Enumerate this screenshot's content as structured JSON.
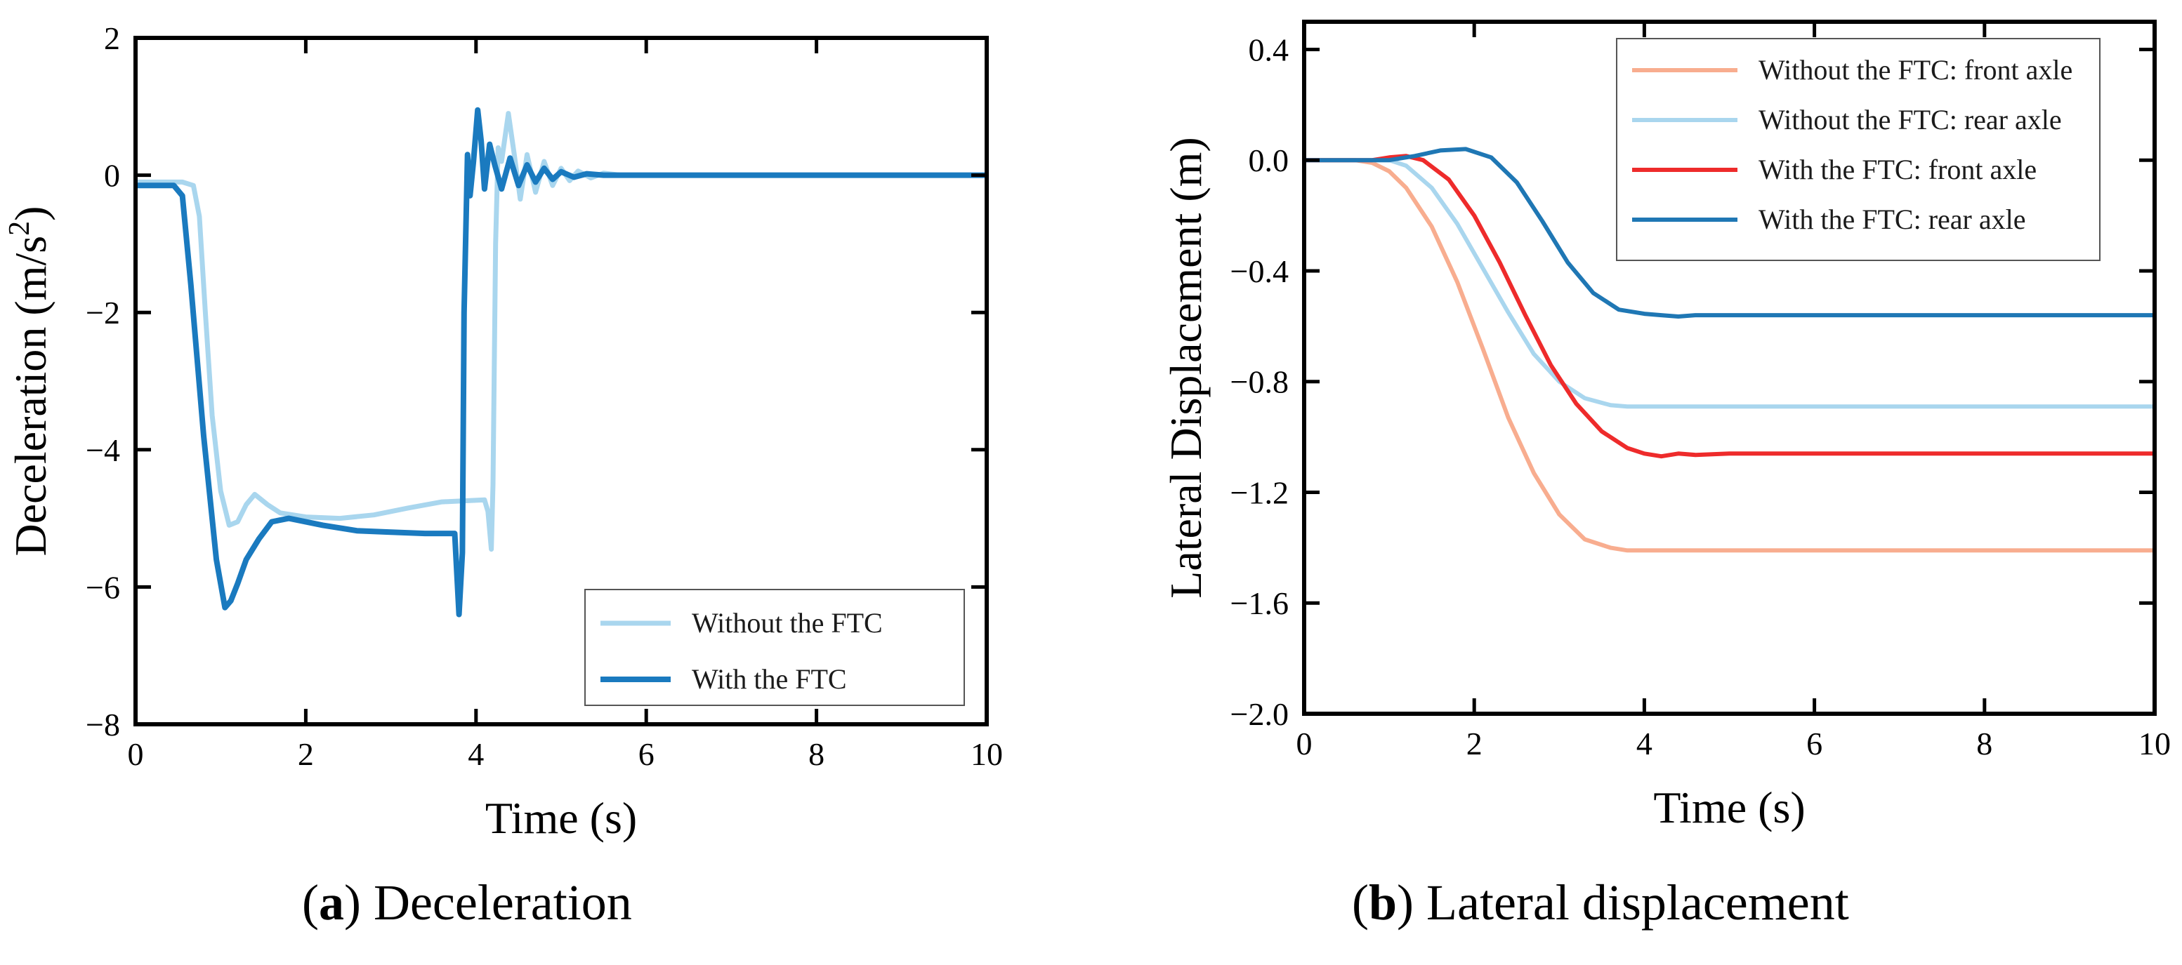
{
  "chart_data": [
    {
      "type": "line",
      "title": "",
      "xlabel": "Time (s)",
      "ylabel_main": "Deceleration (m/s",
      "ylabel_sup": "2",
      "ylabel_tail": ")",
      "xlim": [
        0,
        10
      ],
      "ylim": [
        -8,
        2
      ],
      "xticks": [
        0,
        2,
        4,
        6,
        8,
        10
      ],
      "yticks": [
        -8,
        -6,
        -4,
        -2,
        0,
        2
      ],
      "ytick_labels": [
        "−8",
        "−6",
        "−4",
        "−2",
        "0",
        "2"
      ],
      "grid": false,
      "legend_position": "bottom-right",
      "caption_letter": "a",
      "caption_text": "Deceleration",
      "series": [
        {
          "name": "Without the FTC",
          "color": "#a9d6ee",
          "x": [
            0,
            0.55,
            0.68,
            0.75,
            0.82,
            0.9,
            1.0,
            1.1,
            1.2,
            1.3,
            1.4,
            1.55,
            1.7,
            2.0,
            2.4,
            2.8,
            3.2,
            3.6,
            4.1,
            4.14,
            4.18,
            4.2,
            4.23,
            4.26,
            4.3,
            4.38,
            4.45,
            4.52,
            4.6,
            4.7,
            4.8,
            4.9,
            5.0,
            5.1,
            5.2,
            5.35,
            5.5,
            5.7,
            6.0,
            6.5,
            7.0,
            8.0,
            9.0,
            10.0
          ],
          "y": [
            -0.1,
            -0.1,
            -0.15,
            -0.6,
            -2.0,
            -3.5,
            -4.6,
            -5.1,
            -5.05,
            -4.8,
            -4.65,
            -4.8,
            -4.92,
            -4.98,
            -5.0,
            -4.95,
            -4.85,
            -4.76,
            -4.73,
            -4.9,
            -5.45,
            -4.5,
            -1.0,
            0.4,
            0.2,
            0.9,
            0.3,
            -0.35,
            0.3,
            -0.25,
            0.2,
            -0.15,
            0.1,
            -0.08,
            0.06,
            -0.04,
            0.03,
            0.0,
            0.0,
            0.0,
            0.0,
            0.0,
            0.0,
            0.0
          ]
        },
        {
          "name": "With the FTC",
          "color": "#1a7abf",
          "x": [
            0,
            0.45,
            0.55,
            0.65,
            0.8,
            0.95,
            1.05,
            1.12,
            1.2,
            1.3,
            1.45,
            1.6,
            1.8,
            2.2,
            2.6,
            3.0,
            3.4,
            3.75,
            3.8,
            3.84,
            3.86,
            3.9,
            3.93,
            3.97,
            4.02,
            4.06,
            4.1,
            4.16,
            4.22,
            4.3,
            4.4,
            4.5,
            4.6,
            4.7,
            4.8,
            4.9,
            5.0,
            5.15,
            5.3,
            5.5,
            5.8,
            6.2,
            7.0,
            8.0,
            9.0,
            10.0
          ],
          "y": [
            -0.15,
            -0.15,
            -0.3,
            -1.6,
            -3.8,
            -5.6,
            -6.3,
            -6.2,
            -5.95,
            -5.6,
            -5.3,
            -5.05,
            -5.0,
            -5.1,
            -5.18,
            -5.2,
            -5.22,
            -5.22,
            -6.4,
            -5.5,
            -2.0,
            0.3,
            -0.3,
            0.2,
            0.95,
            0.5,
            -0.2,
            0.45,
            0.15,
            -0.2,
            0.25,
            -0.15,
            0.15,
            -0.1,
            0.1,
            -0.06,
            0.05,
            -0.03,
            0.02,
            0.0,
            0.0,
            0.0,
            0.0,
            0.0,
            0.0,
            0.0
          ]
        }
      ]
    },
    {
      "type": "line",
      "title": "",
      "xlabel": "Time (s)",
      "ylabel": "Lateral Displacement (m)",
      "xlim": [
        0,
        10
      ],
      "ylim": [
        -2.0,
        0.5
      ],
      "xticks": [
        0,
        2,
        4,
        6,
        8,
        10
      ],
      "yticks": [
        -2.0,
        -1.6,
        -1.2,
        -0.8,
        -0.4,
        0.0,
        0.4
      ],
      "ytick_labels": [
        "−2.0",
        "−1.6",
        "−1.2",
        "−0.8",
        "−0.4",
        "0.0",
        "0.4"
      ],
      "grid": false,
      "legend_position": "top-right",
      "caption_letter": "b",
      "caption_text": "Lateral displacement",
      "series": [
        {
          "name": "Without the FTC: front axle",
          "color": "#f8ad8f",
          "x": [
            0,
            0.6,
            0.8,
            1.0,
            1.2,
            1.5,
            1.8,
            2.1,
            2.4,
            2.7,
            3.0,
            3.3,
            3.6,
            3.8,
            4.0,
            4.5,
            5.0,
            6.0,
            7.0,
            8.0,
            9.0,
            10.0
          ],
          "y": [
            0,
            0,
            -0.01,
            -0.04,
            -0.1,
            -0.24,
            -0.44,
            -0.68,
            -0.93,
            -1.13,
            -1.28,
            -1.37,
            -1.4,
            -1.41,
            -1.41,
            -1.41,
            -1.41,
            -1.41,
            -1.41,
            -1.41,
            -1.41,
            -1.41
          ]
        },
        {
          "name": "Without the FTC: rear axle",
          "color": "#a9d6ee",
          "x": [
            0,
            0.8,
            1.0,
            1.2,
            1.5,
            1.8,
            2.1,
            2.4,
            2.7,
            3.0,
            3.3,
            3.6,
            3.8,
            4.0,
            4.5,
            5.0,
            6.0,
            7.0,
            8.0,
            9.0,
            10.0
          ],
          "y": [
            0,
            0,
            0.0,
            -0.02,
            -0.1,
            -0.23,
            -0.39,
            -0.55,
            -0.7,
            -0.8,
            -0.86,
            -0.885,
            -0.89,
            -0.89,
            -0.89,
            -0.89,
            -0.89,
            -0.89,
            -0.89,
            -0.89,
            -0.89
          ]
        },
        {
          "name": "With the FTC: front axle",
          "color": "#ee2b2b",
          "x": [
            0,
            0.8,
            1.0,
            1.2,
            1.4,
            1.7,
            2.0,
            2.3,
            2.6,
            2.9,
            3.2,
            3.5,
            3.8,
            4.0,
            4.2,
            4.4,
            4.6,
            5.0,
            6.0,
            7.0,
            8.0,
            9.0,
            10.0
          ],
          "y": [
            0,
            0,
            0.01,
            0.015,
            0.0,
            -0.07,
            -0.2,
            -0.37,
            -0.56,
            -0.74,
            -0.88,
            -0.98,
            -1.04,
            -1.06,
            -1.07,
            -1.06,
            -1.065,
            -1.06,
            -1.06,
            -1.06,
            -1.06,
            -1.06,
            -1.06
          ]
        },
        {
          "name": "With the FTC: rear axle",
          "color": "#1f77b4",
          "x": [
            0,
            1.0,
            1.3,
            1.6,
            1.9,
            2.2,
            2.5,
            2.8,
            3.1,
            3.4,
            3.7,
            4.0,
            4.2,
            4.4,
            4.6,
            5.0,
            6.0,
            7.0,
            8.0,
            9.0,
            10.0
          ],
          "y": [
            0,
            0,
            0.015,
            0.035,
            0.04,
            0.01,
            -0.08,
            -0.22,
            -0.37,
            -0.48,
            -0.54,
            -0.555,
            -0.56,
            -0.565,
            -0.56,
            -0.56,
            -0.56,
            -0.56,
            -0.56,
            -0.56,
            -0.56
          ]
        }
      ]
    }
  ]
}
